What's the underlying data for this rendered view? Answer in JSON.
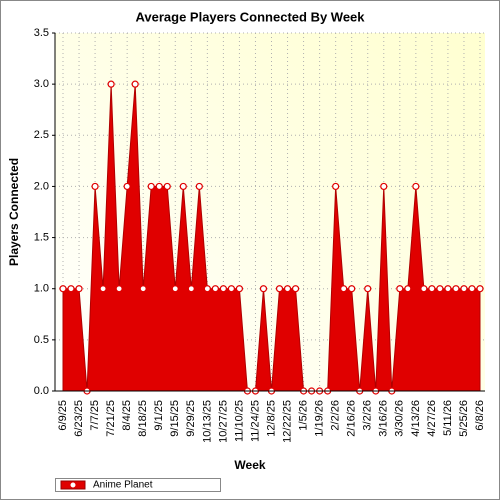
{
  "chart_data": {
    "type": "area",
    "title": "Average Players Connected By Week",
    "x_label": "Week",
    "y_label": "Players Connected",
    "categories": [
      "6/9/25",
      null,
      "6/23/25",
      null,
      "7/7/25",
      null,
      "7/21/25",
      null,
      "8/4/25",
      null,
      "8/18/25",
      null,
      "9/1/25",
      null,
      "9/15/25",
      null,
      "9/29/25",
      null,
      "10/13/25",
      null,
      "10/27/25",
      null,
      "11/10/25",
      null,
      "11/24/25",
      null,
      "12/8/25",
      null,
      "12/22/25",
      null,
      "1/5/26",
      null,
      "1/19/26",
      null,
      "2/2/26",
      null,
      "2/16/26",
      null,
      "3/2/26",
      null,
      "3/16/26",
      null,
      "3/30/26",
      null,
      "4/13/26",
      null,
      "4/27/26",
      null,
      "5/11/26",
      null,
      "5/25/26",
      null,
      "6/8/26"
    ],
    "series": [
      {
        "name": "Anime Planet",
        "color": "#e00000",
        "values": [
          1,
          1,
          1,
          0,
          2,
          1,
          3,
          1,
          2,
          3,
          1,
          2,
          2,
          2,
          1,
          2,
          1,
          2,
          1,
          1,
          1,
          1,
          1,
          0,
          0,
          1,
          0,
          1,
          1,
          1,
          0,
          0,
          0,
          0,
          2,
          1,
          1,
          0,
          1,
          0,
          2,
          0,
          1,
          1,
          2,
          1,
          1,
          1,
          1,
          1,
          1,
          1,
          1
        ]
      }
    ],
    "ylim": [
      0,
      3.5
    ],
    "yticks": [
      {
        "value": 0,
        "label": "0.0"
      },
      {
        "value": 0.5,
        "label": "0.5"
      },
      {
        "value": 1,
        "label": "1.0"
      },
      {
        "value": 1.5,
        "label": "1.5"
      },
      {
        "value": 2,
        "label": "2.0"
      },
      {
        "value": 2.5,
        "label": "2.5"
      },
      {
        "value": 3,
        "label": "3.0"
      },
      {
        "value": 3.5,
        "label": "3.5"
      }
    ],
    "grid": true,
    "legend": "bottom-left"
  }
}
